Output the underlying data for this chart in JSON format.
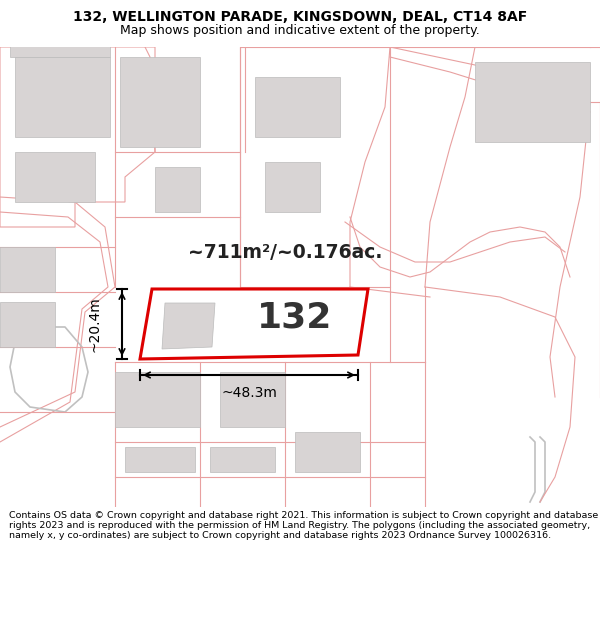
{
  "title_line1": "132, WELLINGTON PARADE, KINGSDOWN, DEAL, CT14 8AF",
  "title_line2": "Map shows position and indicative extent of the property.",
  "footer_text": "Contains OS data © Crown copyright and database right 2021. This information is subject to Crown copyright and database rights 2023 and is reproduced with the permission of HM Land Registry. The polygons (including the associated geometry, namely x, y co-ordinates) are subject to Crown copyright and database rights 2023 Ordnance Survey 100026316.",
  "area_text": "~711m²/~0.176ac.",
  "width_label": "~48.3m",
  "height_label": "~20.4m",
  "plot_number": "132",
  "map_bg": "#ffffff",
  "highlight_color": "#dd0000",
  "building_fill": "#d8d4d4",
  "building_edge": "#bbbbbb",
  "line_color": "#e8a0a0",
  "title_fs": 10,
  "subtitle_fs": 9,
  "footer_fs": 6.8
}
